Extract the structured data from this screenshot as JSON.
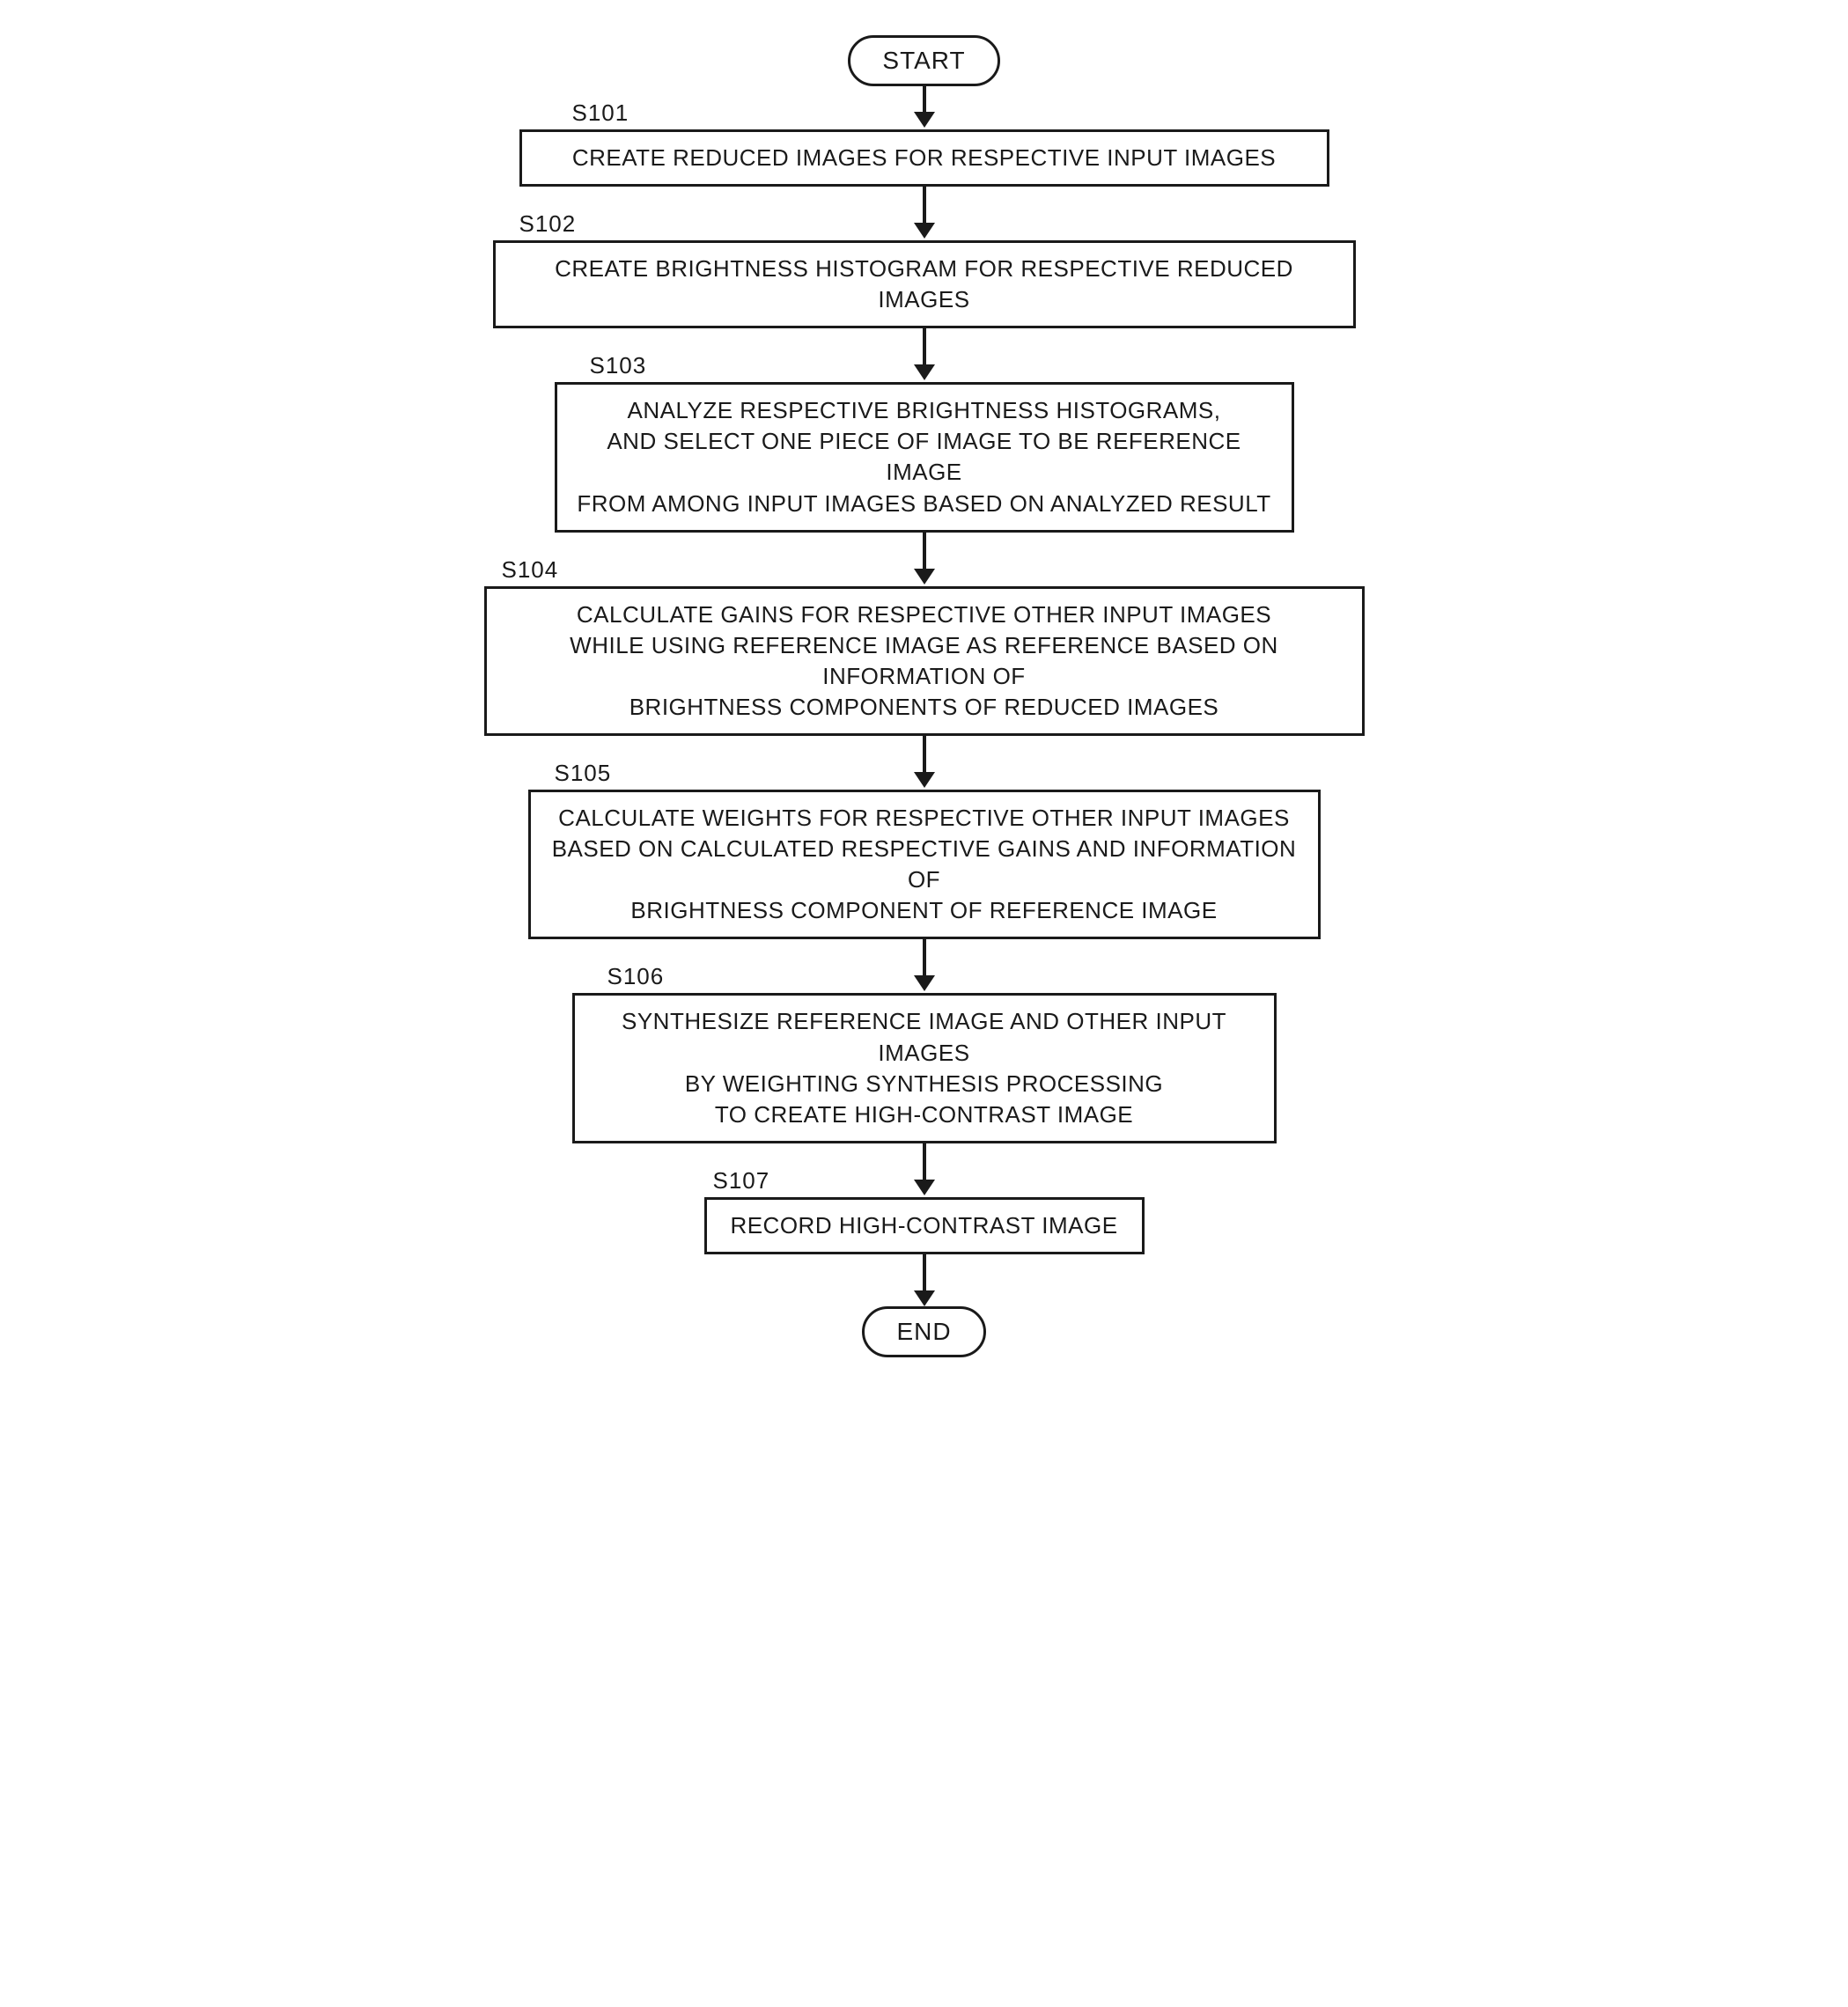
{
  "flowchart": {
    "start": "START",
    "end": "END",
    "font_size_box": 26,
    "font_size_terminal": 28,
    "border_color": "#1a1a1a",
    "border_width": 3,
    "background": "#ffffff",
    "arrow_shaft_width": 4,
    "arrow_head_width": 24,
    "arrow_head_height": 18,
    "steps": [
      {
        "id": "S101",
        "text": "CREATE REDUCED IMAGES FOR RESPECTIVE INPUT IMAGES",
        "width_pct": 92,
        "label_left_pct": 10,
        "arrow_before": 30
      },
      {
        "id": "S102",
        "text": "CREATE BRIGHTNESS HISTOGRAM FOR RESPECTIVE REDUCED IMAGES",
        "width_pct": 98,
        "label_left_pct": 4,
        "arrow_before": 42
      },
      {
        "id": "S103",
        "text": "ANALYZE RESPECTIVE BRIGHTNESS HISTOGRAMS,\nAND SELECT ONE PIECE OF IMAGE TO BE REFERENCE IMAGE\nFROM AMONG INPUT IMAGES BASED ON ANALYZED RESULT",
        "width_pct": 84,
        "label_left_pct": 12,
        "arrow_before": 42
      },
      {
        "id": "S104",
        "text": "CALCULATE GAINS FOR RESPECTIVE OTHER INPUT IMAGES\nWHILE USING REFERENCE IMAGE AS REFERENCE BASED ON INFORMATION OF\nBRIGHTNESS COMPONENTS OF REDUCED IMAGES",
        "width_pct": 100,
        "label_left_pct": 2,
        "arrow_before": 42
      },
      {
        "id": "S105",
        "text": "CALCULATE WEIGHTS FOR RESPECTIVE OTHER INPUT IMAGES\nBASED ON CALCULATED RESPECTIVE GAINS AND INFORMATION OF\nBRIGHTNESS COMPONENT OF REFERENCE IMAGE",
        "width_pct": 90,
        "label_left_pct": 8,
        "arrow_before": 42
      },
      {
        "id": "S106",
        "text": "SYNTHESIZE REFERENCE IMAGE AND OTHER INPUT IMAGES\nBY WEIGHTING SYNTHESIS PROCESSING\nTO CREATE HIGH-CONTRAST IMAGE",
        "width_pct": 80,
        "label_left_pct": 14,
        "arrow_before": 42
      },
      {
        "id": "S107",
        "text": "RECORD HIGH-CONTRAST IMAGE",
        "width_pct": 50,
        "label_left_pct": 26,
        "arrow_before": 42
      }
    ],
    "arrow_after_last": 42
  }
}
